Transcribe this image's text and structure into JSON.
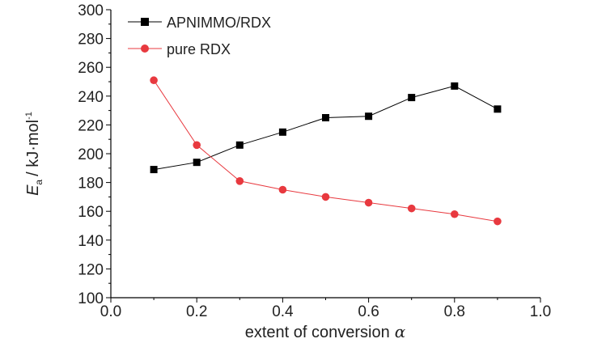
{
  "chart_data": {
    "type": "line",
    "x": [
      0.1,
      0.2,
      0.3,
      0.4,
      0.5,
      0.6,
      0.7,
      0.8,
      0.9
    ],
    "series": [
      {
        "name": "APNIMMO/RDX",
        "values": [
          189,
          194,
          206,
          215,
          225,
          226,
          239,
          247,
          231
        ],
        "color": "#000000",
        "marker": "square"
      },
      {
        "name": "pure RDX",
        "values": [
          251,
          206,
          181,
          175,
          170,
          166,
          162,
          158,
          153
        ],
        "color": "#e8393f",
        "marker": "circle"
      }
    ],
    "xlim": [
      0.0,
      1.0
    ],
    "ylim": [
      100,
      300
    ],
    "x_ticks": [
      "0.0",
      "0.2",
      "0.4",
      "0.6",
      "0.8",
      "1.0"
    ],
    "y_ticks": [
      "100",
      "120",
      "140",
      "160",
      "180",
      "200",
      "220",
      "240",
      "260",
      "280",
      "300"
    ],
    "xlabel": "extent of conversion",
    "xlabel_symbol": "α",
    "ylabel_symbol": "E",
    "ylabel_subscript": "a",
    "ylabel_unit": "/ kJ·mol",
    "ylabel_unit_superscript": "-1",
    "legend_position": "top-left",
    "grid": false
  }
}
